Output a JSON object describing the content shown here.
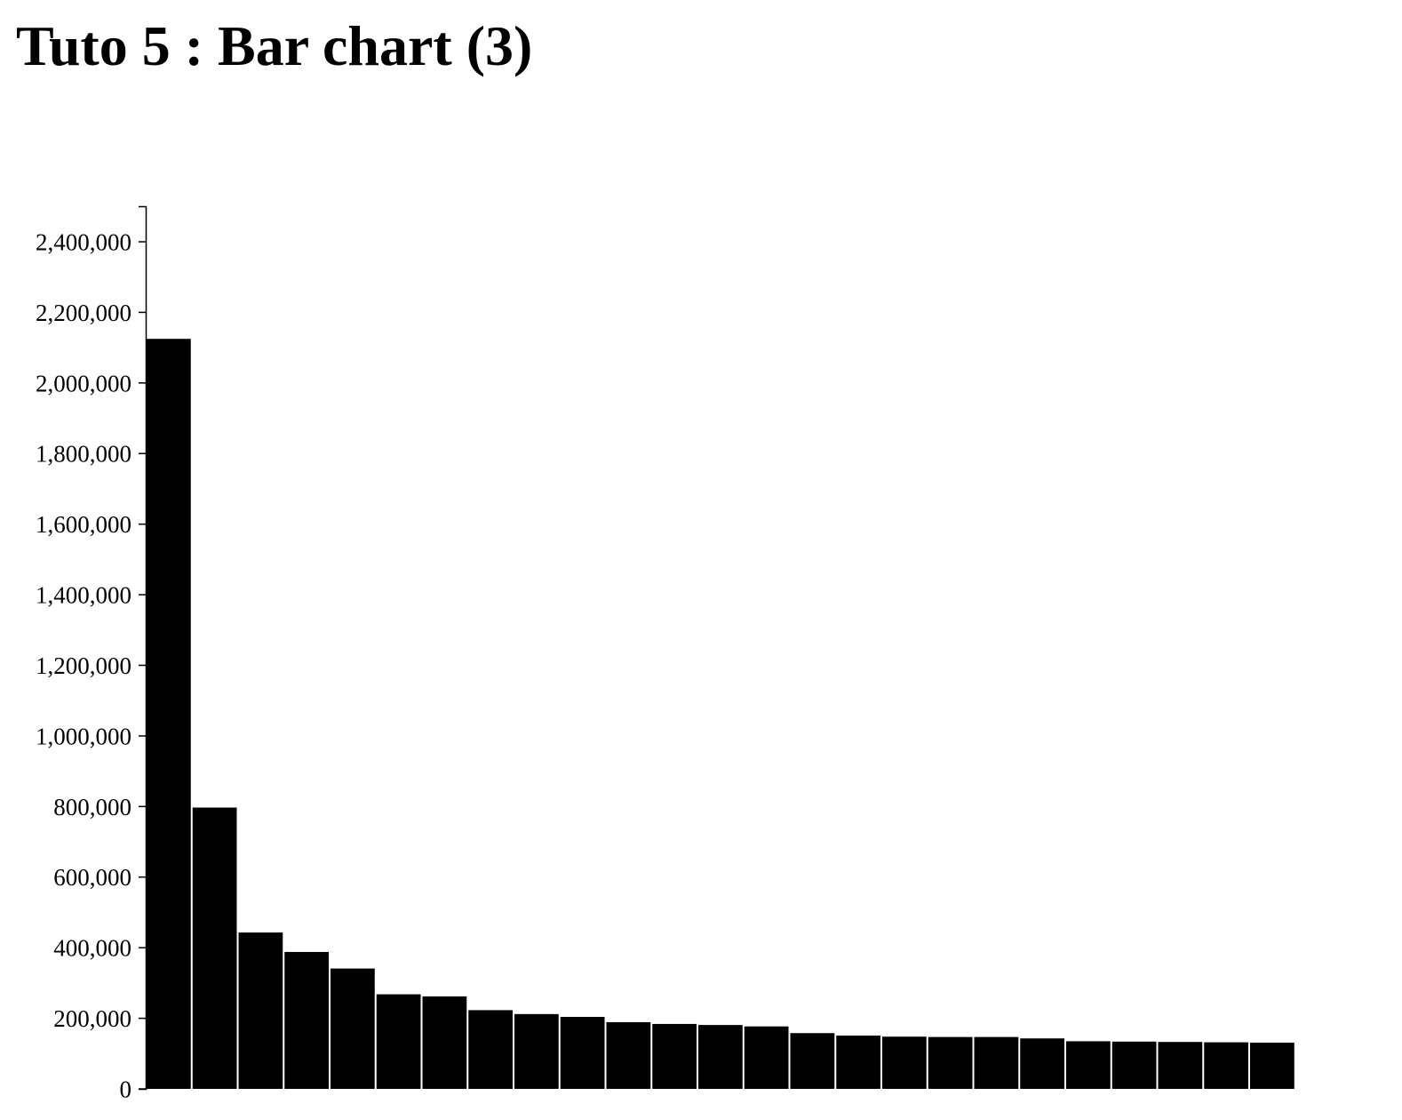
{
  "page": {
    "title": "Tuto 5 : Bar chart (3)"
  },
  "chart_data": {
    "type": "bar",
    "title": "",
    "xlabel": "",
    "ylabel": "",
    "ylim": [
      0,
      2500000
    ],
    "y_ticks": [
      {
        "value": 0,
        "label": "0"
      },
      {
        "value": 200000,
        "label": "200,000"
      },
      {
        "value": 400000,
        "label": "400,000"
      },
      {
        "value": 600000,
        "label": "600,000"
      },
      {
        "value": 800000,
        "label": "800,000"
      },
      {
        "value": 1000000,
        "label": "1,000,000"
      },
      {
        "value": 1200000,
        "label": "1,200,000"
      },
      {
        "value": 1400000,
        "label": "1,400,000"
      },
      {
        "value": 1600000,
        "label": "1,600,000"
      },
      {
        "value": 1800000,
        "label": "1,800,000"
      },
      {
        "value": 2000000,
        "label": "2,000,000"
      },
      {
        "value": 2200000,
        "label": "2,200,000"
      },
      {
        "value": 2400000,
        "label": "2,400,000"
      }
    ],
    "values": [
      2125000,
      797000,
      443000,
      388000,
      341000,
      268000,
      262000,
      223000,
      212000,
      204000,
      189000,
      184000,
      181000,
      177000,
      158000,
      151000,
      148000,
      147000,
      147000,
      143000,
      135000,
      134000,
      133000,
      132000,
      131000
    ],
    "grid": false,
    "legend": "none",
    "bar_color": "#000000",
    "gap_color": "#ffffff"
  }
}
